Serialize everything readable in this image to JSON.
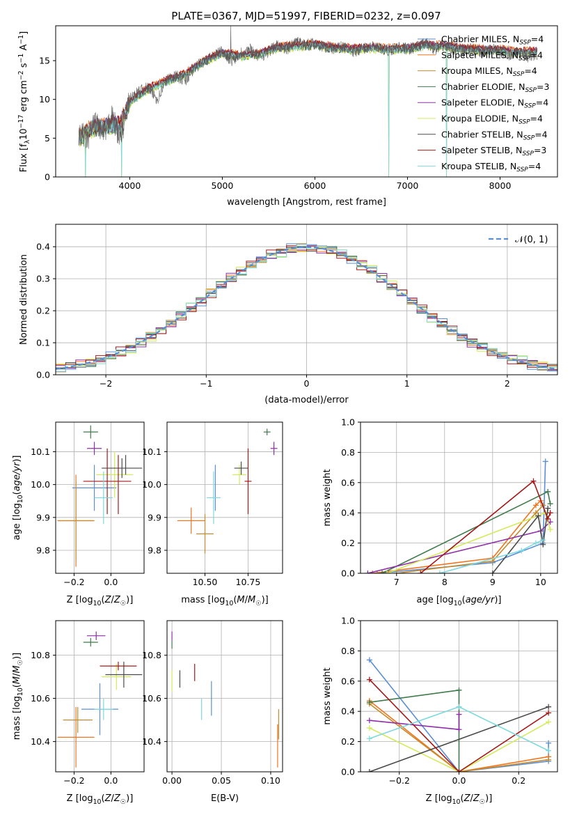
{
  "figure_title": "PLATE=0367, MJD=51997, FIBERID=0232, z=0.097",
  "palette": {
    "Chabrier MILES": "#5a8fd6",
    "Salpeter MILES": "#f0741e",
    "Kroupa MILES": "#c88a2a",
    "Chabrier ELODIE": "#3f7a4a",
    "Salpeter ELODIE": "#8e2fa8",
    "Kroupa ELODIE": "#d4ea5a",
    "Chabrier STELIB": "#4a4a4a",
    "Salpeter STELIB": "#a51818",
    "Kroupa STELIB": "#7fd8de"
  },
  "series_order": [
    "Chabrier MILES",
    "Salpeter MILES",
    "Kroupa MILES",
    "Chabrier ELODIE",
    "Salpeter ELODIE",
    "Kroupa ELODIE",
    "Chabrier STELIB",
    "Salpeter STELIB",
    "Kroupa STELIB"
  ],
  "chart_data": [
    {
      "id": "spectrum",
      "type": "line",
      "title": "PLATE=0367, MJD=51997, FIBERID=0232, z=0.097",
      "xlabel": "wavelength [Angstrom, rest frame]",
      "ylabel": "Flux [f_λ 10^-17 erg cm^-2 s^-1 A^-1]",
      "xlim": [
        3200,
        8620
      ],
      "ylim": [
        0,
        19.5
      ],
      "xticks": [
        4000,
        5000,
        6000,
        7000,
        8000
      ],
      "yticks": [
        0,
        5,
        10,
        15
      ],
      "grid": false,
      "legend": "top-right",
      "legend_entries": [
        {
          "series": "Chabrier MILES",
          "label": "Chabrier MILES, N",
          "sub": "SSP",
          "tail": "=4"
        },
        {
          "series": "Salpeter MILES",
          "label": "Salpeter MILES, N",
          "sub": "SSP",
          "tail": "=4"
        },
        {
          "series": "Kroupa MILES",
          "label": "Kroupa MILES, N",
          "sub": "SSP",
          "tail": "=4"
        },
        {
          "series": "Chabrier ELODIE",
          "label": "Chabrier ELODIE, N",
          "sub": "SSP",
          "tail": "=3"
        },
        {
          "series": "Salpeter ELODIE",
          "label": "Salpeter ELODIE, N",
          "sub": "SSP",
          "tail": "=4"
        },
        {
          "series": "Kroupa ELODIE",
          "label": "Kroupa ELODIE, N",
          "sub": "SSP",
          "tail": "=4"
        },
        {
          "series": "Chabrier STELIB",
          "label": "Chabrier STELIB, N",
          "sub": "SSP",
          "tail": "=4"
        },
        {
          "series": "Salpeter STELIB",
          "label": "Salpeter STELIB, N",
          "sub": "SSP",
          "tail": "=3"
        },
        {
          "series": "Kroupa STELIB",
          "label": "Kroupa STELIB, N",
          "sub": "SSP",
          "tail": "=4"
        }
      ],
      "observed_x": [
        3450,
        3500,
        3550,
        3600,
        3650,
        3700,
        3750,
        3800,
        3850,
        3900,
        3950,
        4000,
        4100,
        4200,
        4300,
        4400,
        4500,
        4600,
        4700,
        4800,
        4900,
        5000,
        5100,
        5200,
        5300,
        5400,
        5500,
        5600,
        5700,
        5800,
        5900,
        6000,
        6100,
        6200,
        6300,
        6400,
        6500,
        6600,
        6700,
        6800,
        6900,
        7000,
        7100,
        7200,
        7300,
        7400,
        7500,
        7600,
        7700,
        7800,
        7900,
        8000,
        8100,
        8200,
        8300,
        8400
      ],
      "observed_y": [
        5.0,
        5.5,
        4.8,
        6.5,
        7.0,
        5.5,
        6.0,
        8.0,
        6.5,
        5.0,
        7.5,
        10.0,
        11.0,
        11.5,
        10.0,
        12.5,
        13.0,
        12.5,
        14.0,
        15.0,
        15.5,
        16.2,
        15.0,
        16.0,
        16.5,
        15.5,
        16.2,
        17.0,
        16.5,
        17.5,
        17.0,
        17.2,
        16.8,
        16.5,
        16.8,
        16.2,
        16.5,
        16.8,
        16.5,
        16.3,
        16.8,
        16.5,
        16.8,
        17.2,
        16.5,
        17.0,
        16.5,
        16.2,
        16.5,
        16.0,
        16.5,
        16.2,
        15.8,
        16.0,
        15.5,
        15.8
      ],
      "model_x": [
        3450,
        3600,
        3750,
        3900,
        4000,
        4200,
        4400,
        4600,
        4800,
        5000,
        5200,
        5400,
        5600,
        5800,
        6000,
        6200,
        6400,
        6600,
        6800,
        7000,
        7200,
        7400,
        7600,
        7800,
        8000,
        8200,
        8400
      ],
      "model_y": [
        5.0,
        6.3,
        6.5,
        6.8,
        9.5,
        11.3,
        12.3,
        13.2,
        14.8,
        15.9,
        15.5,
        15.8,
        16.6,
        16.8,
        17.0,
        16.6,
        16.4,
        16.6,
        16.4,
        16.5,
        16.9,
        16.8,
        16.5,
        16.3,
        16.3,
        16.0,
        16.1
      ],
      "model_offsets": {
        "Chabrier MILES": 0.15,
        "Salpeter MILES": 0.35,
        "Kroupa MILES": 0.05,
        "Chabrier ELODIE": -0.1,
        "Salpeter ELODIE": 0.2,
        "Kroupa ELODIE": -0.2,
        "Chabrier STELIB": 0.1,
        "Salpeter STELIB": 0.3,
        "Kroupa STELIB": -0.05
      },
      "masked_wavelengths": [
        3520,
        3910,
        6800,
        7420
      ],
      "sky_line_wavelength": 5090
    },
    {
      "id": "residual-histogram",
      "type": "line",
      "xlabel": "(data-model)/error",
      "ylabel": "Normed distribution",
      "xlim": [
        -2.5,
        2.5
      ],
      "ylim": [
        0,
        0.47
      ],
      "xticks": [
        -2,
        -1,
        0,
        1,
        2
      ],
      "yticks": [
        0.0,
        0.1,
        0.2,
        0.3,
        0.4
      ],
      "grid": true,
      "legend": "top-right",
      "reference_label": "𝒩(0, 1)",
      "bin_width": 0.1,
      "bin_start": -2.5,
      "bin_count": 50,
      "series_jitter": {
        "Chabrier MILES": [
          0.012,
          -0.008,
          0.015
        ],
        "Salpeter MILES": [
          -0.01,
          0.014,
          -0.006
        ],
        "Kroupa MILES": [
          0.006,
          0.01,
          -0.012
        ],
        "Chabrier ELODIE": [
          -0.014,
          0.004,
          0.011
        ],
        "Salpeter ELODIE": [
          0.016,
          -0.012,
          0.008
        ],
        "Kroupa ELODIE": [
          0.02,
          -0.004,
          -0.015
        ],
        "Chabrier STELIB": [
          -0.006,
          0.013,
          0.004
        ],
        "Salpeter STELIB": [
          0.01,
          -0.015,
          0.012
        ],
        "Kroupa STELIB": [
          -0.018,
          0.008,
          -0.01
        ]
      }
    },
    {
      "id": "age-vs-metallicity",
      "type": "scatter",
      "xlabel": "Z [log10(Z/Z☉)]",
      "ylabel": "age [log10(age/yr)]",
      "xlim": [
        -0.3,
        0.18
      ],
      "ylim": [
        9.73,
        10.19
      ],
      "xticks": [
        -0.2,
        0.0
      ],
      "xtick_labels": [
        "−0.2",
        "0.0"
      ],
      "yticks": [
        9.8,
        9.9,
        10.0,
        10.1
      ],
      "grid": true,
      "points": [
        {
          "series": "Chabrier MILES",
          "x": -0.09,
          "y": 9.99,
          "xerr": 0.12,
          "yerr": 0.07
        },
        {
          "series": "Salpeter MILES",
          "x": -0.19,
          "y": 9.89,
          "xerr": 0.1,
          "yerr": 0.14
        },
        {
          "series": "Kroupa MILES",
          "x": -0.19,
          "y": 9.89,
          "xerr": 0.1,
          "yerr": 0.12
        },
        {
          "series": "Chabrier ELODIE",
          "x": -0.11,
          "y": 10.16,
          "xerr": 0.04,
          "yerr": 0.02
        },
        {
          "series": "Salpeter ELODIE",
          "x": -0.09,
          "y": 10.11,
          "xerr": 0.04,
          "yerr": 0.02
        },
        {
          "series": "Kroupa ELODIE",
          "x": 0.02,
          "y": 10.03,
          "xerr": 0.1,
          "yerr": 0.07
        },
        {
          "series": "Chabrier STELIB",
          "x": 0.06,
          "y": 10.05,
          "xerr": 0.11,
          "yerr": 0.03
        },
        {
          "series": "Salpeter STELIB",
          "x": -0.02,
          "y": 10.01,
          "xerr": 0.13,
          "yerr": 0.1
        },
        {
          "series": "Kroupa STELIB",
          "x": -0.04,
          "y": 9.96,
          "xerr": 0.05,
          "yerr": 0.08
        },
        {
          "series": "Salpeter STELIB",
          "x": 0.04,
          "y": 10.0,
          "xerr": 0.0,
          "yerr": 0.09
        },
        {
          "series": "Chabrier STELIB",
          "x": 0.08,
          "y": 10.06,
          "xerr": 0.0,
          "yerr": 0.03
        }
      ]
    },
    {
      "id": "age-vs-mass",
      "type": "scatter",
      "xlabel": "mass [log10(M/M☉)]",
      "ylabel": "",
      "xlim": [
        10.28,
        10.95
      ],
      "ylim": [
        9.73,
        10.19
      ],
      "xticks": [
        10.5,
        10.75
      ],
      "xtick_labels": [
        "10.50",
        "10.75"
      ],
      "yticks": [
        9.8,
        9.9,
        10.0,
        10.1
      ],
      "grid": true,
      "points": [
        {
          "series": "Chabrier MILES",
          "x": 10.56,
          "y": 9.99,
          "xerr": 0.0,
          "yerr": 0.07
        },
        {
          "series": "Salpeter MILES",
          "x": 10.42,
          "y": 9.89,
          "xerr": 0.08,
          "yerr": 0.04
        },
        {
          "series": "Kroupa MILES",
          "x": 10.5,
          "y": 9.85,
          "xerr": 0.05,
          "yerr": 0.06
        },
        {
          "series": "Chabrier ELODIE",
          "x": 10.86,
          "y": 10.16,
          "xerr": 0.02,
          "yerr": 0.01
        },
        {
          "series": "Salpeter ELODIE",
          "x": 10.9,
          "y": 10.11,
          "xerr": 0.02,
          "yerr": 0.02
        },
        {
          "series": "Kroupa ELODIE",
          "x": 10.7,
          "y": 10.03,
          "xerr": 0.04,
          "yerr": 0.03
        },
        {
          "series": "Chabrier STELIB",
          "x": 10.71,
          "y": 10.05,
          "xerr": 0.04,
          "yerr": 0.02
        },
        {
          "series": "Salpeter STELIB",
          "x": 10.75,
          "y": 10.01,
          "xerr": 0.02,
          "yerr": 0.1
        },
        {
          "series": "Kroupa STELIB",
          "x": 10.55,
          "y": 9.96,
          "xerr": 0.04,
          "yerr": 0.08
        }
      ]
    },
    {
      "id": "mass-weight-vs-age",
      "type": "line",
      "xlabel": "age [log10(age/yr)]",
      "ylabel": "mass weight",
      "xlim": [
        6.25,
        10.35
      ],
      "ylim": [
        0,
        1.0
      ],
      "xticks": [
        7,
        8,
        9,
        10
      ],
      "yticks": [
        0.0,
        0.2,
        0.4,
        0.6,
        0.8,
        1.0
      ],
      "grid": true,
      "series": [
        {
          "series": "Chabrier MILES",
          "x": [
            6.6,
            9.0,
            10.05,
            10.1
          ],
          "y": [
            0.0,
            0.07,
            0.2,
            0.74
          ]
        },
        {
          "series": "Salpeter MILES",
          "x": [
            6.5,
            9.0,
            9.9,
            10.0
          ],
          "y": [
            0.0,
            0.1,
            0.45,
            0.48
          ]
        },
        {
          "series": "Kroupa MILES",
          "x": [
            7.0,
            9.0,
            9.9,
            10.05
          ],
          "y": [
            0.0,
            0.08,
            0.4,
            0.45
          ]
        },
        {
          "series": "Chabrier ELODIE",
          "x": [
            6.7,
            10.15,
            10.2
          ],
          "y": [
            0.0,
            0.54,
            0.46
          ]
        },
        {
          "series": "Salpeter ELODIE",
          "x": [
            6.4,
            10.0,
            10.2
          ],
          "y": [
            0.0,
            0.28,
            0.34
          ]
        },
        {
          "series": "Kroupa ELODIE",
          "x": [
            6.8,
            10.1,
            10.2
          ],
          "y": [
            0.0,
            0.4,
            0.29
          ]
        },
        {
          "series": "Chabrier STELIB",
          "x": [
            9.0,
            9.95,
            10.05,
            10.15
          ],
          "y": [
            0.0,
            0.38,
            0.19,
            0.43
          ]
        },
        {
          "series": "Salpeter STELIB",
          "x": [
            7.5,
            9.85,
            10.15,
            10.2
          ],
          "y": [
            0.0,
            0.61,
            0.36,
            0.4
          ]
        },
        {
          "series": "Kroupa STELIB",
          "x": [
            7.9,
            9.6,
            9.9,
            10.05
          ],
          "y": [
            0.0,
            0.15,
            0.2,
            0.22
          ]
        }
      ]
    },
    {
      "id": "mass-vs-metallicity",
      "type": "scatter",
      "xlabel": "Z [log10(Z/Z☉)]",
      "ylabel": "mass [log10(M/M☉)]",
      "xlim": [
        -0.3,
        0.18
      ],
      "ylim": [
        10.26,
        10.96
      ],
      "xticks": [
        -0.2,
        0.0
      ],
      "xtick_labels": [
        "−0.2",
        "0.0"
      ],
      "yticks": [
        10.4,
        10.6,
        10.8
      ],
      "grid": true,
      "points": [
        {
          "series": "Chabrier MILES",
          "x": -0.06,
          "y": 10.55,
          "xerr": 0.1,
          "yerr": 0.12
        },
        {
          "series": "Salpeter MILES",
          "x": -0.19,
          "y": 10.42,
          "xerr": 0.1,
          "yerr": 0.14
        },
        {
          "series": "Kroupa MILES",
          "x": -0.18,
          "y": 10.5,
          "xerr": 0.08,
          "yerr": 0.06
        },
        {
          "series": "Chabrier ELODIE",
          "x": -0.11,
          "y": 10.86,
          "xerr": 0.04,
          "yerr": 0.02
        },
        {
          "series": "Salpeter ELODIE",
          "x": -0.08,
          "y": 10.89,
          "xerr": 0.05,
          "yerr": 0.02
        },
        {
          "series": "Kroupa ELODIE",
          "x": 0.03,
          "y": 10.7,
          "xerr": 0.08,
          "yerr": 0.06
        },
        {
          "series": "Chabrier STELIB",
          "x": 0.07,
          "y": 10.71,
          "xerr": 0.1,
          "yerr": 0.06
        },
        {
          "series": "Salpeter STELIB",
          "x": 0.04,
          "y": 10.75,
          "xerr": 0.1,
          "yerr": 0.02
        },
        {
          "series": "Kroupa STELIB",
          "x": -0.04,
          "y": 10.55,
          "xerr": 0.05,
          "yerr": 0.05
        }
      ]
    },
    {
      "id": "mass-vs-ebv",
      "type": "scatter",
      "xlabel": "E(B-V)",
      "ylabel": "",
      "xlim": [
        -0.005,
        0.112
      ],
      "ylim": [
        10.26,
        10.96
      ],
      "xticks": [
        0.0,
        0.05,
        0.1
      ],
      "xtick_labels": [
        "0.00",
        "0.05",
        "0.10"
      ],
      "yticks": [
        10.4,
        10.6,
        10.8
      ],
      "grid": true,
      "points": [
        {
          "series": "Chabrier MILES",
          "x": 0.04,
          "y": 10.6,
          "xerr": 0.0,
          "yerr": 0.08
        },
        {
          "series": "Salpeter MILES",
          "x": 0.107,
          "y": 10.38,
          "xerr": 0.0,
          "yerr": 0.1
        },
        {
          "series": "Kroupa MILES",
          "x": 0.108,
          "y": 10.48,
          "xerr": 0.0,
          "yerr": 0.07
        },
        {
          "series": "Chabrier ELODIE",
          "x": 0.0,
          "y": 10.85,
          "xerr": 0.0,
          "yerr": 0.02
        },
        {
          "series": "Salpeter ELODIE",
          "x": 0.0,
          "y": 10.89,
          "xerr": 0.0,
          "yerr": 0.02
        },
        {
          "series": "Kroupa ELODIE",
          "x": 0.0,
          "y": 10.68,
          "xerr": 0.0,
          "yerr": 0.05
        },
        {
          "series": "Chabrier STELIB",
          "x": 0.008,
          "y": 10.69,
          "xerr": 0.0,
          "yerr": 0.04
        },
        {
          "series": "Salpeter STELIB",
          "x": 0.023,
          "y": 10.72,
          "xerr": 0.0,
          "yerr": 0.04
        },
        {
          "series": "Kroupa STELIB",
          "x": 0.03,
          "y": 10.55,
          "xerr": 0.0,
          "yerr": 0.05
        }
      ]
    },
    {
      "id": "mass-weight-vs-metallicity",
      "type": "line",
      "xlabel": "Z [log10(Z/Z☉)]",
      "ylabel": "mass weight",
      "xlim": [
        -0.33,
        0.33
      ],
      "ylim": [
        0,
        1.0
      ],
      "xticks": [
        -0.2,
        0.0,
        0.2
      ],
      "xtick_labels": [
        "−0.2",
        "0.0",
        "0.2"
      ],
      "yticks": [
        0.0,
        0.2,
        0.4,
        0.6,
        0.8,
        1.0
      ],
      "grid": true,
      "series": [
        {
          "series": "Chabrier MILES",
          "x": [
            -0.3,
            0.0,
            0.3,
            0.3
          ],
          "y": [
            0.74,
            0.0,
            0.07,
            0.19
          ]
        },
        {
          "series": "Salpeter MILES",
          "x": [
            -0.3,
            0.0,
            0.3
          ],
          "y": [
            0.47,
            0.0,
            0.1
          ]
        },
        {
          "series": "Kroupa MILES",
          "x": [
            -0.3,
            0.0,
            0.3
          ],
          "y": [
            0.45,
            0.0,
            0.08
          ]
        },
        {
          "series": "Chabrier ELODIE",
          "x": [
            -0.3,
            0.0,
            0.0
          ],
          "y": [
            0.46,
            0.54,
            0.0
          ]
        },
        {
          "series": "Salpeter ELODIE",
          "x": [
            -0.3,
            0.0,
            0.0
          ],
          "y": [
            0.34,
            0.28,
            0.38
          ]
        },
        {
          "series": "Kroupa ELODIE",
          "x": [
            -0.3,
            0.0,
            0.3
          ],
          "y": [
            0.29,
            0.0,
            0.33
          ]
        },
        {
          "series": "Chabrier STELIB",
          "x": [
            -0.3,
            0.3
          ],
          "y": [
            0.0,
            0.43
          ]
        },
        {
          "series": "Salpeter STELIB",
          "x": [
            -0.3,
            0.0,
            0.3
          ],
          "y": [
            0.61,
            0.0,
            0.39
          ]
        },
        {
          "series": "Kroupa STELIB",
          "x": [
            -0.3,
            0.0,
            0.3
          ],
          "y": [
            0.22,
            0.43,
            0.14
          ]
        }
      ]
    }
  ]
}
